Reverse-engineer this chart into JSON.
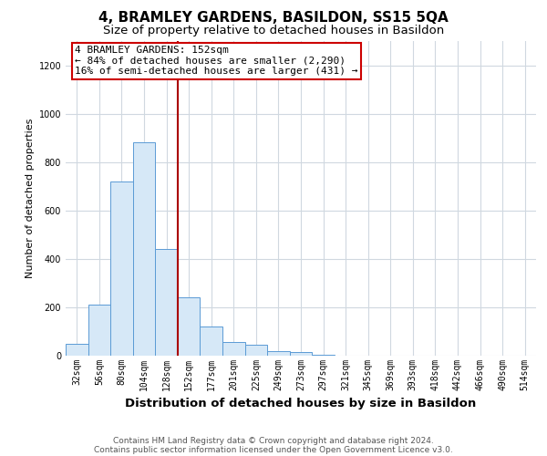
{
  "title": "4, BRAMLEY GARDENS, BASILDON, SS15 5QA",
  "subtitle": "Size of property relative to detached houses in Basildon",
  "xlabel": "Distribution of detached houses by size in Basildon",
  "ylabel": "Number of detached properties",
  "footnote1": "Contains HM Land Registry data © Crown copyright and database right 2024.",
  "footnote2": "Contains public sector information licensed under the Open Government Licence v3.0.",
  "bar_labels": [
    "32sqm",
    "56sqm",
    "80sqm",
    "104sqm",
    "128sqm",
    "152sqm",
    "177sqm",
    "201sqm",
    "225sqm",
    "249sqm",
    "273sqm",
    "297sqm",
    "321sqm",
    "345sqm",
    "369sqm",
    "393sqm",
    "418sqm",
    "442sqm",
    "466sqm",
    "490sqm",
    "514sqm"
  ],
  "bar_values": [
    50,
    210,
    720,
    880,
    440,
    240,
    120,
    55,
    45,
    20,
    15,
    5,
    0,
    0,
    0,
    0,
    0,
    0,
    0,
    0,
    0
  ],
  "bar_color": "#d6e8f7",
  "bar_edgecolor": "#5b9bd5",
  "vline_x_idx": 5,
  "vline_color": "#aa0000",
  "annotation_text": "4 BRAMLEY GARDENS: 152sqm\n← 84% of detached houses are smaller (2,290)\n16% of semi-detached houses are larger (431) →",
  "annotation_box_edgecolor": "#cc0000",
  "ylim": [
    0,
    1300
  ],
  "yticks": [
    0,
    200,
    400,
    600,
    800,
    1000,
    1200
  ],
  "grid_color": "#d0d8e0",
  "background_color": "#ffffff",
  "title_fontsize": 11,
  "subtitle_fontsize": 9.5,
  "xlabel_fontsize": 9.5,
  "ylabel_fontsize": 8,
  "tick_fontsize": 7,
  "annotation_fontsize": 8,
  "footnote_fontsize": 6.5
}
